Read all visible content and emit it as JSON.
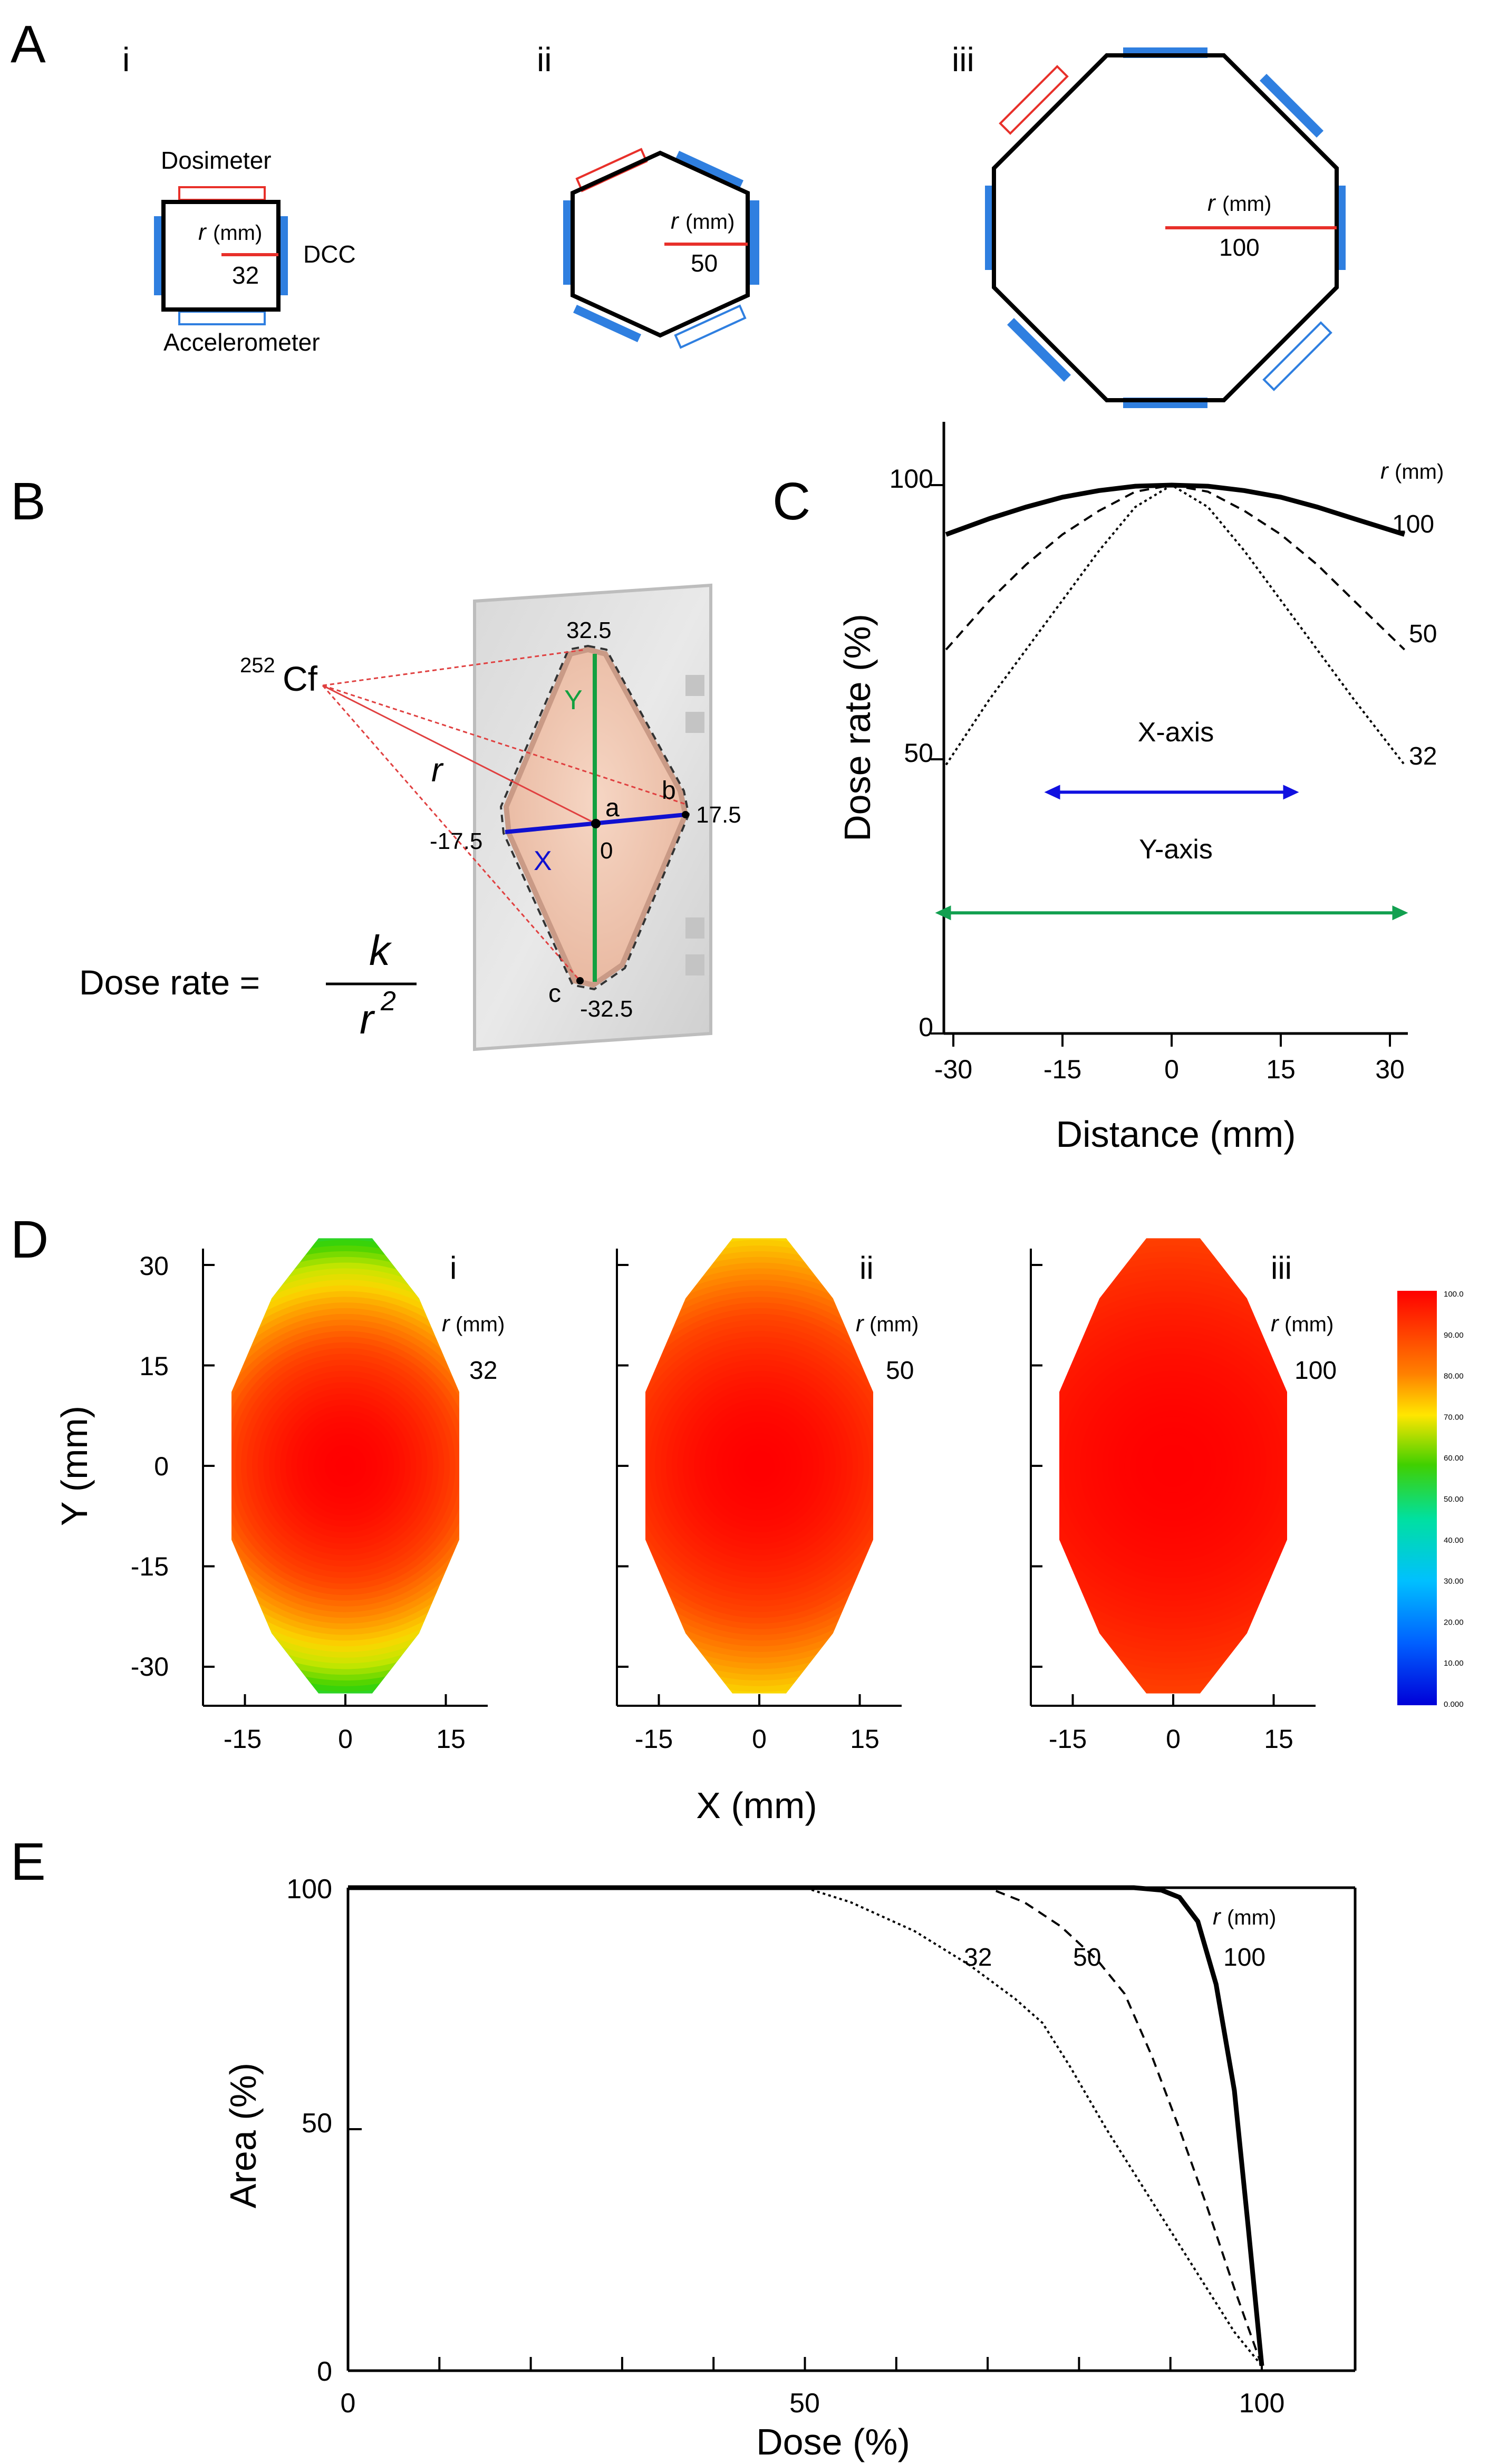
{
  "panel_labels": {
    "a": "A",
    "b": "B",
    "c": "C",
    "d": "D",
    "e": "E"
  },
  "roman": {
    "i": "i",
    "ii": "ii",
    "iii": "iii"
  },
  "r_symbol": "r",
  "mm_unit": "(mm)",
  "panel_a": {
    "dosimeter": "Dosimeter",
    "dcc": "DCC",
    "accelerometer": "Accelerometer",
    "radii": [
      "32",
      "50",
      "100"
    ],
    "colors": {
      "dosimeter": "#e8302a",
      "accelerometer": "#2f7fe0",
      "dcc": "#2f7fe0",
      "radius": "#e8302a"
    }
  },
  "panel_b": {
    "source_mass": "252",
    "source_element": "Cf",
    "formula_lhs": "Dose rate =",
    "formula_num": "k",
    "formula_den": "r",
    "formula_exp": "2",
    "axis_x": "X",
    "axis_y": "Y",
    "labels": {
      "top": "32.5",
      "bottom": "-32.5",
      "left": "-17.5",
      "right": "17.5",
      "origin": "0",
      "a": "a",
      "b": "b",
      "c": "c",
      "r": "r"
    },
    "colors": {
      "x_axis": "#1010d0",
      "y_axis": "#12a040",
      "rays": "#e04040",
      "chamber": "#f3c9b4"
    }
  },
  "chart_data": [
    {
      "panel": "C",
      "type": "line",
      "xlabel": "Distance (mm)",
      "ylabel": "Dose rate (%)",
      "xlim": [
        -33,
        33
      ],
      "ylim": [
        0,
        110
      ],
      "xticks": [
        "-30",
        "-15",
        "0",
        "15",
        "30"
      ],
      "yticks": [
        "0",
        "50",
        "100"
      ],
      "legend_title": "r (mm)",
      "series": [
        {
          "name": "100",
          "style": "solid",
          "x": [
            -31,
            -25,
            -20,
            -15,
            -10,
            -5,
            0,
            5,
            10,
            15,
            20,
            25,
            32
          ],
          "y": [
            91,
            93.9,
            96,
            97.8,
            99,
            99.8,
            100,
            99.8,
            99,
            97.8,
            96,
            93.9,
            91
          ]
        },
        {
          "name": "50",
          "style": "dashed",
          "x": [
            -31,
            -25,
            -20,
            -15,
            -10,
            -5,
            0,
            5,
            10,
            15,
            20,
            25,
            32
          ],
          "y": [
            70,
            79,
            85.5,
            91,
            95.3,
            98.8,
            100,
            98.8,
            95.3,
            91,
            85.5,
            79,
            70
          ]
        },
        {
          "name": "32",
          "style": "dotted",
          "x": [
            -31,
            -25,
            -20,
            -15,
            -10,
            -5,
            0,
            5,
            10,
            15,
            20,
            25,
            32
          ],
          "y": [
            49,
            61,
            70,
            79,
            88,
            96,
            100,
            96,
            88,
            79,
            70,
            61,
            49
          ]
        }
      ],
      "annotations": [
        {
          "text": "X-axis",
          "from": -17.5,
          "to": 17.5,
          "level": 44,
          "color": "#1010e0"
        },
        {
          "text": "Y-axis",
          "from": -32.5,
          "to": 32.5,
          "level": 22,
          "color": "#12a050"
        }
      ]
    },
    {
      "panel": "D",
      "type": "heatmap",
      "xlabel": "X (mm)",
      "ylabel": "Y (mm)",
      "xticks": [
        "-15",
        "0",
        "15"
      ],
      "yticks": [
        "30",
        "15",
        "0",
        "-15",
        "-30"
      ],
      "maps": [
        {
          "id": "i",
          "r_mm": "32",
          "min_dose_pct": 55
        },
        {
          "id": "ii",
          "r_mm": "50",
          "min_dose_pct": 72
        },
        {
          "id": "iii",
          "r_mm": "100",
          "min_dose_pct": 89
        }
      ],
      "colorbar_ticks": [
        "100.0",
        "90.00",
        "80.00",
        "70.00",
        "60.00",
        "50.00",
        "40.00",
        "30.00",
        "20.00",
        "10.00",
        "0.000"
      ]
    },
    {
      "panel": "E",
      "type": "line",
      "xlabel": "Dose (%)",
      "ylabel": "Area (%)",
      "xlim": [
        0,
        100
      ],
      "ylim": [
        0,
        100
      ],
      "xticks": [
        "0",
        "50",
        "100"
      ],
      "yticks": [
        "0",
        "50",
        "100"
      ],
      "legend_title": "r (mm)",
      "series": [
        {
          "name": "100",
          "style": "solid",
          "x": [
            0,
            86,
            89,
            91,
            93,
            95,
            97,
            98.5,
            100
          ],
          "y": [
            100,
            100,
            99.5,
            98,
            93,
            80,
            58,
            30,
            1
          ]
        },
        {
          "name": "50",
          "style": "dashed",
          "x": [
            0,
            70,
            74,
            78,
            82,
            85,
            88,
            91,
            94,
            97,
            100
          ],
          "y": [
            100,
            100,
            97,
            92,
            85,
            78,
            65,
            50,
            34,
            17,
            1
          ]
        },
        {
          "name": "32",
          "style": "dotted",
          "x": [
            0,
            50,
            55,
            62,
            68,
            73,
            76,
            79,
            83,
            88,
            93,
            97,
            100
          ],
          "y": [
            100,
            100,
            97,
            91,
            84,
            77,
            72,
            63,
            50,
            35,
            20,
            8,
            1
          ]
        }
      ]
    }
  ]
}
